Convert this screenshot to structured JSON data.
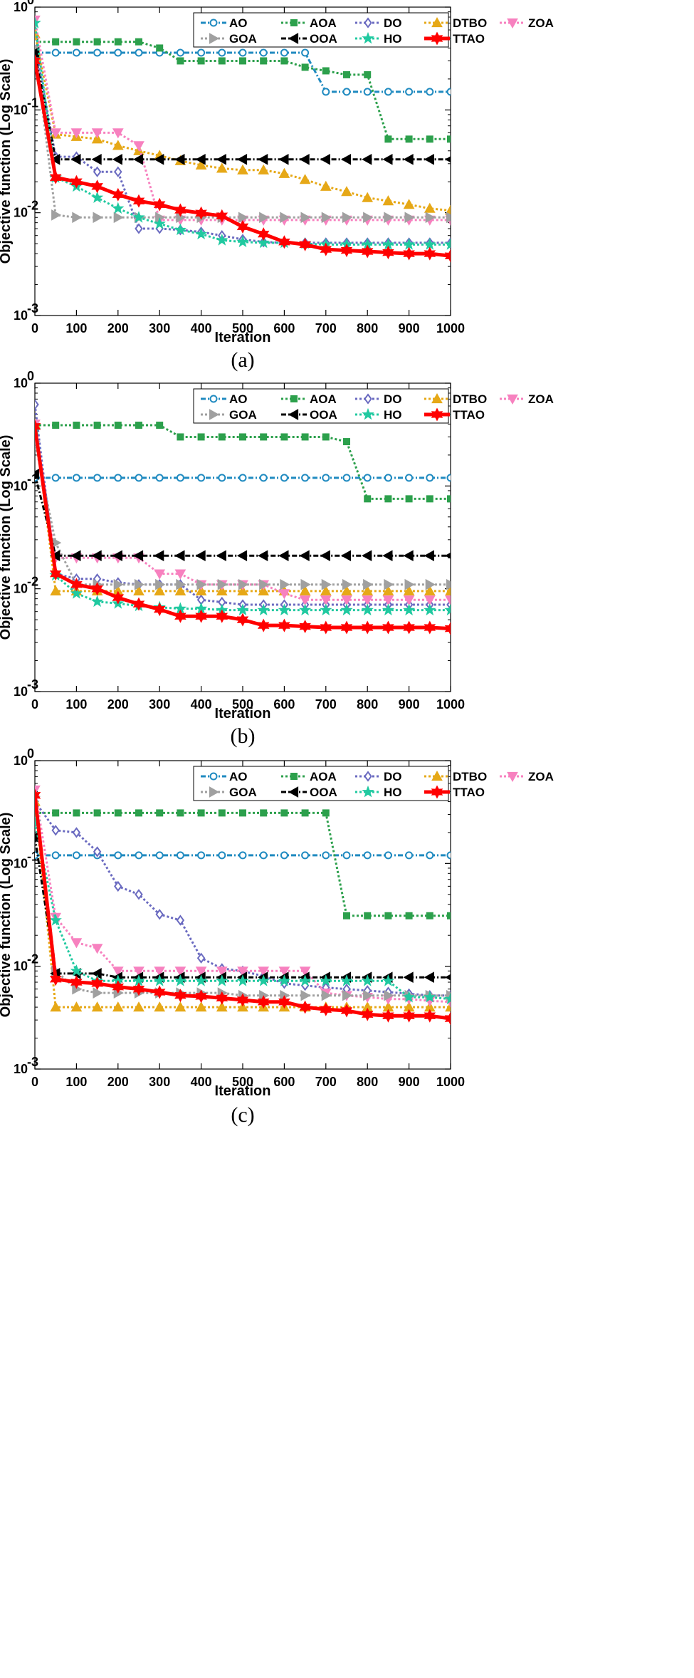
{
  "chart_data": [
    {
      "type": "line",
      "caption": "(a)",
      "xlabel": "Iteration",
      "ylabel": "Objective function (Log Scale)",
      "xlim": [
        0,
        1000
      ],
      "ylim": [
        0.001,
        1
      ],
      "yscale": "log",
      "xticks": [
        "0",
        "100",
        "200",
        "300",
        "400",
        "500",
        "600",
        "700",
        "800",
        "900",
        "1000"
      ],
      "yticks": [
        {
          "base": "10",
          "exp": "0"
        },
        {
          "base": "10",
          "exp": "-1"
        },
        {
          "base": "10",
          "exp": "-2"
        },
        {
          "base": "10",
          "exp": "-3"
        }
      ],
      "x": [
        0,
        50,
        100,
        150,
        200,
        250,
        300,
        350,
        400,
        450,
        500,
        550,
        600,
        650,
        700,
        750,
        800,
        850,
        900,
        950,
        1000
      ],
      "series": [
        {
          "name": "AO",
          "values": [
            0.36,
            0.36,
            0.36,
            0.36,
            0.36,
            0.36,
            0.36,
            0.36,
            0.36,
            0.36,
            0.36,
            0.36,
            0.36,
            0.36,
            0.15,
            0.15,
            0.15,
            0.15,
            0.15,
            0.15,
            0.15
          ]
        },
        {
          "name": "AOA",
          "values": [
            0.46,
            0.46,
            0.46,
            0.46,
            0.46,
            0.46,
            0.4,
            0.3,
            0.3,
            0.3,
            0.3,
            0.3,
            0.3,
            0.26,
            0.24,
            0.22,
            0.22,
            0.052,
            0.052,
            0.052,
            0.052
          ]
        },
        {
          "name": "DO",
          "values": [
            0.45,
            0.035,
            0.035,
            0.025,
            0.025,
            0.007,
            0.007,
            0.0068,
            0.0065,
            0.006,
            0.0055,
            0.0052,
            0.0051,
            0.0051,
            0.0051,
            0.0051,
            0.0051,
            0.0051,
            0.0051,
            0.0051,
            0.0051
          ]
        },
        {
          "name": "DTBO",
          "values": [
            0.55,
            0.058,
            0.055,
            0.052,
            0.045,
            0.04,
            0.036,
            0.032,
            0.029,
            0.027,
            0.026,
            0.026,
            0.024,
            0.021,
            0.018,
            0.016,
            0.014,
            0.013,
            0.012,
            0.011,
            0.0105
          ]
        },
        {
          "name": "ZOA",
          "values": [
            0.75,
            0.06,
            0.06,
            0.06,
            0.06,
            0.045,
            0.0085,
            0.0085,
            0.0085,
            0.0085,
            0.0085,
            0.0085,
            0.0085,
            0.0085,
            0.0085,
            0.0085,
            0.0085,
            0.0085,
            0.0085,
            0.0085,
            0.0085
          ]
        },
        {
          "name": "GOA",
          "values": [
            0.4,
            0.0095,
            0.009,
            0.009,
            0.009,
            0.009,
            0.009,
            0.009,
            0.009,
            0.009,
            0.009,
            0.009,
            0.009,
            0.009,
            0.009,
            0.009,
            0.009,
            0.009,
            0.009,
            0.009,
            0.009
          ]
        },
        {
          "name": "OOA",
          "values": [
            0.36,
            0.033,
            0.033,
            0.033,
            0.033,
            0.033,
            0.033,
            0.033,
            0.033,
            0.033,
            0.033,
            0.033,
            0.033,
            0.033,
            0.033,
            0.033,
            0.033,
            0.033,
            0.033,
            0.033,
            0.033
          ]
        },
        {
          "name": "HO",
          "values": [
            0.7,
            0.022,
            0.018,
            0.014,
            0.011,
            0.009,
            0.0078,
            0.0068,
            0.0062,
            0.0054,
            0.0052,
            0.0051,
            0.0051,
            0.005,
            0.0049,
            0.0049,
            0.0049,
            0.0049,
            0.0049,
            0.0049,
            0.0049
          ]
        },
        {
          "name": "TTAO",
          "values": [
            0.3,
            0.022,
            0.02,
            0.018,
            0.015,
            0.013,
            0.012,
            0.0106,
            0.0099,
            0.0093,
            0.0073,
            0.0062,
            0.0052,
            0.0049,
            0.0044,
            0.0043,
            0.0042,
            0.0041,
            0.004,
            0.004,
            0.0038
          ]
        }
      ]
    },
    {
      "type": "line",
      "caption": "(b)",
      "xlabel": "Iteration",
      "ylabel": "Objective function (Log Scale)",
      "xlim": [
        0,
        1000
      ],
      "ylim": [
        0.001,
        1
      ],
      "yscale": "log",
      "xticks": [
        "0",
        "100",
        "200",
        "300",
        "400",
        "500",
        "600",
        "700",
        "800",
        "900",
        "1000"
      ],
      "yticks": [
        {
          "base": "10",
          "exp": "0"
        },
        {
          "base": "10",
          "exp": "-1"
        },
        {
          "base": "10",
          "exp": "-2"
        },
        {
          "base": "10",
          "exp": "-3"
        }
      ],
      "x": [
        0,
        50,
        100,
        150,
        200,
        250,
        300,
        350,
        400,
        450,
        500,
        550,
        600,
        650,
        700,
        750,
        800,
        850,
        900,
        950,
        1000
      ],
      "series": [
        {
          "name": "AO",
          "values": [
            0.12,
            0.12,
            0.12,
            0.12,
            0.12,
            0.12,
            0.12,
            0.12,
            0.12,
            0.12,
            0.12,
            0.12,
            0.12,
            0.12,
            0.12,
            0.12,
            0.12,
            0.12,
            0.12,
            0.12,
            0.12
          ]
        },
        {
          "name": "AOA",
          "values": [
            0.39,
            0.39,
            0.39,
            0.39,
            0.39,
            0.39,
            0.39,
            0.3,
            0.3,
            0.3,
            0.3,
            0.3,
            0.3,
            0.3,
            0.3,
            0.27,
            0.075,
            0.075,
            0.075,
            0.075,
            0.075
          ]
        },
        {
          "name": "DO",
          "values": [
            0.62,
            0.014,
            0.0125,
            0.0125,
            0.0115,
            0.011,
            0.011,
            0.011,
            0.0078,
            0.0074,
            0.007,
            0.007,
            0.007,
            0.007,
            0.007,
            0.007,
            0.007,
            0.007,
            0.007,
            0.007,
            0.007
          ]
        },
        {
          "name": "DTBO",
          "values": [
            0.4,
            0.0095,
            0.0095,
            0.0095,
            0.0095,
            0.0095,
            0.0095,
            0.0095,
            0.0095,
            0.0095,
            0.0095,
            0.0095,
            0.0095,
            0.0095,
            0.0095,
            0.0095,
            0.0095,
            0.0095,
            0.0095,
            0.0095,
            0.0095
          ]
        },
        {
          "name": "ZOA",
          "values": [
            0.4,
            0.02,
            0.02,
            0.02,
            0.02,
            0.02,
            0.014,
            0.014,
            0.011,
            0.011,
            0.011,
            0.011,
            0.009,
            0.0078,
            0.0078,
            0.0078,
            0.0078,
            0.0078,
            0.0078,
            0.0078,
            0.0078
          ]
        },
        {
          "name": "GOA",
          "values": [
            0.27,
            0.028,
            0.011,
            0.011,
            0.011,
            0.011,
            0.011,
            0.011,
            0.011,
            0.011,
            0.011,
            0.011,
            0.011,
            0.011,
            0.011,
            0.011,
            0.011,
            0.011,
            0.011,
            0.011,
            0.011
          ]
        },
        {
          "name": "OOA",
          "values": [
            0.13,
            0.021,
            0.021,
            0.021,
            0.021,
            0.021,
            0.021,
            0.021,
            0.021,
            0.021,
            0.021,
            0.021,
            0.021,
            0.021,
            0.021,
            0.021,
            0.021,
            0.021,
            0.021,
            0.021,
            0.021
          ]
        },
        {
          "name": "HO",
          "values": [
            0.35,
            0.0135,
            0.009,
            0.0075,
            0.0072,
            0.0068,
            0.0066,
            0.0064,
            0.0064,
            0.0062,
            0.0062,
            0.0062,
            0.0062,
            0.0062,
            0.0062,
            0.0062,
            0.0062,
            0.0062,
            0.0062,
            0.0062,
            0.0062
          ]
        },
        {
          "name": "TTAO",
          "values": [
            0.38,
            0.014,
            0.011,
            0.01,
            0.0082,
            0.0071,
            0.0063,
            0.0054,
            0.0054,
            0.0054,
            0.005,
            0.0044,
            0.0044,
            0.0043,
            0.0042,
            0.0042,
            0.0042,
            0.0042,
            0.0042,
            0.0042,
            0.0041
          ]
        }
      ]
    },
    {
      "type": "line",
      "caption": "(c)",
      "xlabel": "Iteration",
      "ylabel": "Objective function (Log Scale)",
      "xlim": [
        0,
        1000
      ],
      "ylim": [
        0.001,
        1
      ],
      "yscale": "log",
      "xticks": [
        "0",
        "100",
        "200",
        "300",
        "400",
        "500",
        "600",
        "700",
        "800",
        "900",
        "1000"
      ],
      "yticks": [
        {
          "base": "10",
          "exp": "0"
        },
        {
          "base": "10",
          "exp": "-1"
        },
        {
          "base": "10",
          "exp": "-2"
        },
        {
          "base": "10",
          "exp": "-3"
        }
      ],
      "x": [
        0,
        50,
        100,
        150,
        200,
        250,
        300,
        350,
        400,
        450,
        500,
        550,
        600,
        650,
        700,
        750,
        800,
        850,
        900,
        950,
        1000
      ],
      "series": [
        {
          "name": "AO",
          "values": [
            0.12,
            0.12,
            0.12,
            0.12,
            0.12,
            0.12,
            0.12,
            0.12,
            0.12,
            0.12,
            0.12,
            0.12,
            0.12,
            0.12,
            0.12,
            0.12,
            0.12,
            0.12,
            0.12,
            0.12,
            0.12
          ]
        },
        {
          "name": "AOA",
          "values": [
            0.31,
            0.31,
            0.31,
            0.31,
            0.31,
            0.31,
            0.31,
            0.31,
            0.31,
            0.31,
            0.31,
            0.31,
            0.31,
            0.31,
            0.31,
            0.031,
            0.031,
            0.031,
            0.031,
            0.031,
            0.031
          ]
        },
        {
          "name": "DO",
          "values": [
            0.4,
            0.21,
            0.2,
            0.13,
            0.06,
            0.05,
            0.032,
            0.028,
            0.012,
            0.0095,
            0.009,
            0.008,
            0.0068,
            0.0065,
            0.0062,
            0.006,
            0.0058,
            0.0056,
            0.0054,
            0.0052,
            0.0052
          ]
        },
        {
          "name": "DTBO",
          "values": [
            0.4,
            0.004,
            0.004,
            0.004,
            0.004,
            0.004,
            0.004,
            0.004,
            0.004,
            0.004,
            0.004,
            0.004,
            0.004,
            0.004,
            0.004,
            0.004,
            0.004,
            0.004,
            0.004,
            0.004,
            0.004
          ]
        },
        {
          "name": "ZOA",
          "values": [
            0.52,
            0.03,
            0.017,
            0.015,
            0.009,
            0.009,
            0.009,
            0.009,
            0.009,
            0.009,
            0.009,
            0.009,
            0.009,
            0.009,
            0.0055,
            0.0052,
            0.005,
            0.0048,
            0.0048,
            0.0046,
            0.0045
          ]
        },
        {
          "name": "GOA",
          "values": [
            0.45,
            0.009,
            0.006,
            0.0055,
            0.0055,
            0.0055,
            0.0055,
            0.0055,
            0.0055,
            0.0055,
            0.0052,
            0.0052,
            0.0052,
            0.0052,
            0.0052,
            0.0052,
            0.0052,
            0.0052,
            0.0052,
            0.0052,
            0.0052
          ]
        },
        {
          "name": "OOA",
          "values": [
            0.18,
            0.0085,
            0.0085,
            0.0085,
            0.0078,
            0.0078,
            0.0078,
            0.0078,
            0.0078,
            0.0078,
            0.0078,
            0.0078,
            0.0078,
            0.0078,
            0.0078,
            0.0078,
            0.0078,
            0.0078,
            0.0078,
            0.0078,
            0.0078
          ]
        },
        {
          "name": "HO",
          "values": [
            0.25,
            0.028,
            0.009,
            0.0072,
            0.0072,
            0.0072,
            0.0072,
            0.0072,
            0.0072,
            0.0072,
            0.0072,
            0.0072,
            0.0072,
            0.0072,
            0.0072,
            0.0072,
            0.0072,
            0.0072,
            0.005,
            0.005,
            0.0048
          ]
        },
        {
          "name": "TTAO",
          "values": [
            0.46,
            0.0075,
            0.007,
            0.0068,
            0.0063,
            0.006,
            0.0056,
            0.0052,
            0.0051,
            0.0049,
            0.0047,
            0.0045,
            0.0045,
            0.004,
            0.0038,
            0.0037,
            0.0034,
            0.0033,
            0.0033,
            0.0033,
            0.0031
          ]
        }
      ]
    }
  ],
  "legend_style": [
    {
      "name": "AO",
      "color": "#1f8ac0",
      "marker": "circle",
      "dash": "dashdot"
    },
    {
      "name": "AOA",
      "color": "#2ca04c",
      "marker": "square",
      "dash": "dot"
    },
    {
      "name": "DO",
      "color": "#6a6ac0",
      "marker": "diamond",
      "dash": "dot"
    },
    {
      "name": "DTBO",
      "color": "#e6a817",
      "marker": "triangle-up",
      "dash": "dot"
    },
    {
      "name": "ZOA",
      "color": "#f781bf",
      "marker": "triangle-down",
      "dash": "dot"
    },
    {
      "name": "GOA",
      "color": "#a0a0a0",
      "marker": "triangle-right",
      "dash": "dot"
    },
    {
      "name": "OOA",
      "color": "#000000",
      "marker": "triangle-left",
      "dash": "dashdot"
    },
    {
      "name": "HO",
      "color": "#20c9a0",
      "marker": "star",
      "dash": "dot"
    },
    {
      "name": "TTAO",
      "color": "#ff0000",
      "marker": "hexagram",
      "dash": "solid"
    }
  ]
}
